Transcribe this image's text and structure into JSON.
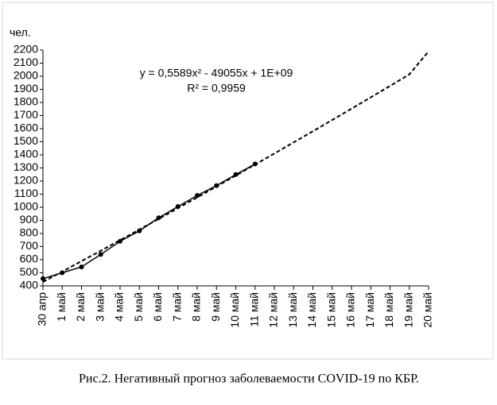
{
  "chart_data": {
    "type": "line",
    "y_label": "чел.",
    "caption": "Рис.2. Негативный прогноз заболеваемости COVID-19 по КБР.",
    "annotations": [
      "y = 0,5589x² - 49055x + 1E+09",
      "R² = 0,9959"
    ],
    "categories": [
      "30 апр",
      "1 май",
      "2 май",
      "3 май",
      "4 май",
      "5 май",
      "6 май",
      "7 май",
      "8 май",
      "9 май",
      "10 май",
      "11 май",
      "12 май",
      "13 май",
      "14 май",
      "15 май",
      "16 май",
      "17 май",
      "18 май",
      "19 май",
      "20 май"
    ],
    "values": [
      455,
      500,
      545,
      640,
      740,
      820,
      920,
      1005,
      1090,
      1165,
      1250,
      1330,
      null,
      null,
      null,
      null,
      null,
      null,
      null,
      null,
      null
    ],
    "color": "#000000",
    "trendline": {
      "values": [
        430,
        509,
        589,
        668,
        749,
        830,
        911,
        993,
        1075,
        1158,
        1242,
        1326,
        1410,
        1495,
        1580,
        1666,
        1752,
        1839,
        1926,
        2014,
        2190
      ],
      "color": "#000000",
      "style": "dashed"
    },
    "ylim": [
      400,
      2200
    ],
    "yticks": [
      400,
      500,
      600,
      700,
      800,
      900,
      1000,
      1100,
      1200,
      1300,
      1400,
      1500,
      1600,
      1700,
      1800,
      1900,
      2000,
      2100,
      2200
    ],
    "grid": false
  }
}
